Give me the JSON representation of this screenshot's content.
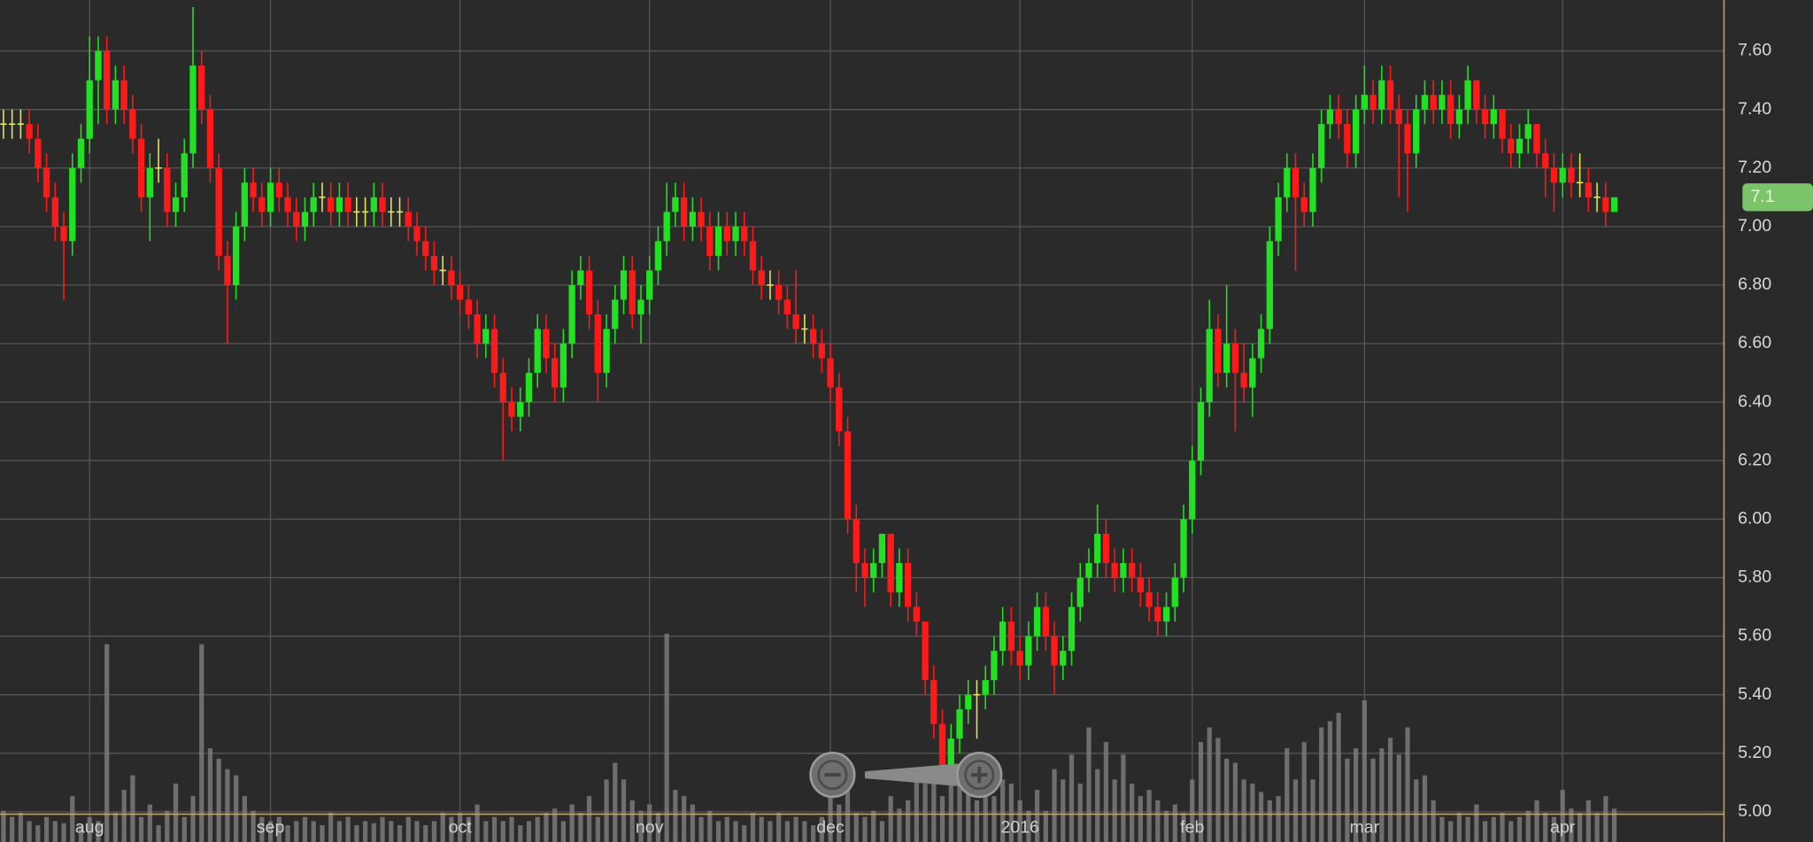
{
  "chart_data": {
    "type": "candlestick",
    "ylim": [
      4.897,
      7.774
    ],
    "yticks": [
      {
        "value": 5,
        "label": "5.00"
      },
      {
        "value": 5.2,
        "label": "5.20"
      },
      {
        "value": 5.4,
        "label": "5.40"
      },
      {
        "value": 5.6,
        "label": "5.60"
      },
      {
        "value": 5.8,
        "label": "5.80"
      },
      {
        "value": 6,
        "label": "6.00"
      },
      {
        "value": 6.2,
        "label": "6.20"
      },
      {
        "value": 6.4,
        "label": "6.40"
      },
      {
        "value": 6.6,
        "label": "6.60"
      },
      {
        "value": 6.8,
        "label": "6.80"
      },
      {
        "value": 7,
        "label": "7.00"
      },
      {
        "value": 7.2,
        "label": "7.20"
      },
      {
        "value": 7.4,
        "label": "7.40"
      },
      {
        "value": 7.6,
        "label": "7.60"
      }
    ],
    "grid": true,
    "colors": {
      "up": "#22e022",
      "down": "#ff1a1a",
      "flat": "#e6e65a",
      "volume": "#7a7a7a",
      "last_price": "#7cc46a"
    },
    "last_price": 7.1,
    "volume_lim": [
      0,
      100
    ],
    "categories": [
      null,
      null,
      null,
      null,
      null,
      null,
      null,
      null,
      null,
      null,
      "aug",
      null,
      null,
      null,
      null,
      null,
      null,
      null,
      null,
      null,
      null,
      null,
      null,
      null,
      null,
      null,
      null,
      null,
      null,
      null,
      null,
      "sep",
      null,
      null,
      null,
      null,
      null,
      null,
      null,
      null,
      null,
      null,
      null,
      null,
      null,
      null,
      null,
      null,
      null,
      null,
      null,
      null,
      null,
      "oct",
      null,
      null,
      null,
      null,
      null,
      null,
      null,
      null,
      null,
      null,
      null,
      null,
      null,
      null,
      null,
      null,
      null,
      null,
      null,
      null,
      null,
      "nov",
      null,
      null,
      null,
      null,
      null,
      null,
      null,
      null,
      null,
      null,
      null,
      null,
      null,
      null,
      null,
      null,
      null,
      null,
      null,
      null,
      "dec",
      null,
      null,
      null,
      null,
      null,
      null,
      null,
      null,
      null,
      null,
      null,
      null,
      null,
      null,
      null,
      null,
      null,
      null,
      null,
      null,
      null,
      "2016",
      null,
      null,
      null,
      null,
      null,
      null,
      null,
      null,
      null,
      null,
      null,
      null,
      null,
      null,
      null,
      null,
      null,
      null,
      null,
      "feb",
      null,
      null,
      null,
      null,
      null,
      null,
      null,
      null,
      null,
      null,
      null,
      null,
      null,
      null,
      null,
      null,
      null,
      null,
      null,
      "mar",
      null,
      null,
      null,
      null,
      null,
      null,
      null,
      null,
      null,
      null,
      null,
      null,
      null,
      null,
      null,
      null,
      null,
      null,
      null,
      null,
      null,
      null,
      "apr",
      null,
      null,
      null,
      null,
      null,
      null
    ],
    "candles": [
      [
        7.35,
        7.4,
        7.3,
        7.35
      ],
      [
        7.35,
        7.4,
        7.3,
        7.35
      ],
      [
        7.35,
        7.4,
        7.3,
        7.35
      ],
      [
        7.35,
        7.4,
        7.25,
        7.3
      ],
      [
        7.3,
        7.35,
        7.15,
        7.2
      ],
      [
        7.2,
        7.25,
        7.05,
        7.1
      ],
      [
        7.1,
        7.15,
        6.95,
        7.0
      ],
      [
        7.0,
        7.05,
        6.75,
        6.95
      ],
      [
        6.95,
        7.25,
        6.9,
        7.2
      ],
      [
        7.2,
        7.35,
        7.15,
        7.3
      ],
      [
        7.3,
        7.65,
        7.25,
        7.5
      ],
      [
        7.5,
        7.65,
        7.35,
        7.6
      ],
      [
        7.6,
        7.65,
        7.35,
        7.4
      ],
      [
        7.4,
        7.55,
        7.35,
        7.5
      ],
      [
        7.5,
        7.55,
        7.35,
        7.4
      ],
      [
        7.4,
        7.45,
        7.25,
        7.3
      ],
      [
        7.3,
        7.35,
        7.05,
        7.1
      ],
      [
        7.1,
        7.25,
        6.95,
        7.2
      ],
      [
        7.2,
        7.3,
        7.15,
        7.2
      ],
      [
        7.2,
        7.25,
        7.0,
        7.05
      ],
      [
        7.05,
        7.15,
        7.0,
        7.1
      ],
      [
        7.1,
        7.3,
        7.05,
        7.25
      ],
      [
        7.25,
        7.75,
        7.2,
        7.55
      ],
      [
        7.55,
        7.6,
        7.35,
        7.4
      ],
      [
        7.4,
        7.45,
        7.15,
        7.2
      ],
      [
        7.2,
        7.25,
        6.85,
        6.9
      ],
      [
        6.9,
        6.95,
        6.6,
        6.8
      ],
      [
        6.8,
        7.05,
        6.75,
        7.0
      ],
      [
        7.0,
        7.2,
        6.95,
        7.15
      ],
      [
        7.15,
        7.2,
        7.05,
        7.1
      ],
      [
        7.1,
        7.15,
        7.0,
        7.05
      ],
      [
        7.05,
        7.2,
        7.0,
        7.15
      ],
      [
        7.15,
        7.2,
        7.05,
        7.1
      ],
      [
        7.1,
        7.15,
        7.0,
        7.05
      ],
      [
        7.05,
        7.1,
        6.95,
        7.0
      ],
      [
        7.0,
        7.1,
        6.95,
        7.05
      ],
      [
        7.05,
        7.15,
        7.0,
        7.1
      ],
      [
        7.1,
        7.15,
        7.05,
        7.1
      ],
      [
        7.1,
        7.15,
        7.0,
        7.05
      ],
      [
        7.05,
        7.15,
        7.0,
        7.1
      ],
      [
        7.1,
        7.15,
        7.0,
        7.05
      ],
      [
        7.05,
        7.1,
        7.0,
        7.05
      ],
      [
        7.05,
        7.1,
        7.0,
        7.05
      ],
      [
        7.05,
        7.15,
        7.0,
        7.1
      ],
      [
        7.1,
        7.15,
        7.0,
        7.05
      ],
      [
        7.05,
        7.1,
        7.0,
        7.05
      ],
      [
        7.05,
        7.1,
        7.0,
        7.05
      ],
      [
        7.05,
        7.1,
        6.95,
        7.0
      ],
      [
        7.0,
        7.05,
        6.9,
        6.95
      ],
      [
        6.95,
        7.0,
        6.85,
        6.9
      ],
      [
        6.9,
        6.95,
        6.8,
        6.85
      ],
      [
        6.85,
        6.9,
        6.8,
        6.85
      ],
      [
        6.85,
        6.9,
        6.75,
        6.8
      ],
      [
        6.8,
        6.85,
        6.7,
        6.75
      ],
      [
        6.75,
        6.8,
        6.65,
        6.7
      ],
      [
        6.7,
        6.75,
        6.55,
        6.6
      ],
      [
        6.6,
        6.7,
        6.55,
        6.65
      ],
      [
        6.65,
        6.7,
        6.45,
        6.5
      ],
      [
        6.5,
        6.55,
        6.2,
        6.4
      ],
      [
        6.4,
        6.45,
        6.3,
        6.35
      ],
      [
        6.35,
        6.45,
        6.3,
        6.4
      ],
      [
        6.4,
        6.55,
        6.35,
        6.5
      ],
      [
        6.5,
        6.7,
        6.45,
        6.65
      ],
      [
        6.65,
        6.7,
        6.5,
        6.55
      ],
      [
        6.55,
        6.6,
        6.4,
        6.45
      ],
      [
        6.45,
        6.65,
        6.4,
        6.6
      ],
      [
        6.6,
        6.85,
        6.55,
        6.8
      ],
      [
        6.8,
        6.9,
        6.75,
        6.85
      ],
      [
        6.85,
        6.9,
        6.65,
        6.7
      ],
      [
        6.7,
        6.75,
        6.4,
        6.5
      ],
      [
        6.5,
        6.7,
        6.45,
        6.65
      ],
      [
        6.65,
        6.8,
        6.6,
        6.75
      ],
      [
        6.75,
        6.9,
        6.7,
        6.85
      ],
      [
        6.85,
        6.9,
        6.65,
        6.7
      ],
      [
        6.7,
        6.8,
        6.6,
        6.75
      ],
      [
        6.75,
        6.9,
        6.7,
        6.85
      ],
      [
        6.85,
        7.0,
        6.8,
        6.95
      ],
      [
        6.95,
        7.15,
        6.9,
        7.05
      ],
      [
        7.05,
        7.15,
        7.0,
        7.1
      ],
      [
        7.1,
        7.15,
        6.95,
        7.0
      ],
      [
        7.0,
        7.1,
        6.95,
        7.05
      ],
      [
        7.05,
        7.1,
        6.95,
        7.0
      ],
      [
        7.0,
        7.05,
        6.85,
        6.9
      ],
      [
        6.9,
        7.05,
        6.85,
        7.0
      ],
      [
        7.0,
        7.05,
        6.9,
        6.95
      ],
      [
        6.95,
        7.05,
        6.9,
        7.0
      ],
      [
        7.0,
        7.05,
        6.9,
        6.95
      ],
      [
        6.95,
        7.0,
        6.8,
        6.85
      ],
      [
        6.85,
        6.9,
        6.75,
        6.8
      ],
      [
        6.8,
        6.85,
        6.75,
        6.8
      ],
      [
        6.8,
        6.85,
        6.7,
        6.75
      ],
      [
        6.75,
        6.8,
        6.65,
        6.7
      ],
      [
        6.7,
        6.85,
        6.6,
        6.65
      ],
      [
        6.65,
        6.7,
        6.6,
        6.65
      ],
      [
        6.65,
        6.7,
        6.55,
        6.6
      ],
      [
        6.6,
        6.65,
        6.5,
        6.55
      ],
      [
        6.55,
        6.6,
        6.4,
        6.45
      ],
      [
        6.45,
        6.5,
        6.25,
        6.3
      ],
      [
        6.3,
        6.35,
        5.95,
        6.0
      ],
      [
        6.0,
        6.05,
        5.75,
        5.85
      ],
      [
        5.85,
        5.9,
        5.7,
        5.8
      ],
      [
        5.8,
        5.9,
        5.75,
        5.85
      ],
      [
        5.85,
        5.95,
        5.8,
        5.95
      ],
      [
        5.95,
        5.95,
        5.7,
        5.75
      ],
      [
        5.75,
        5.9,
        5.7,
        5.85
      ],
      [
        5.85,
        5.9,
        5.65,
        5.7
      ],
      [
        5.7,
        5.75,
        5.6,
        5.65
      ],
      [
        5.65,
        5.65,
        5.4,
        5.45
      ],
      [
        5.45,
        5.5,
        5.25,
        5.3
      ],
      [
        5.3,
        5.35,
        5.1,
        5.15
      ],
      [
        5.15,
        5.3,
        5.1,
        5.25
      ],
      [
        5.25,
        5.4,
        5.2,
        5.35
      ],
      [
        5.35,
        5.45,
        5.3,
        5.4
      ],
      [
        5.4,
        5.45,
        5.25,
        5.4
      ],
      [
        5.4,
        5.5,
        5.35,
        5.45
      ],
      [
        5.45,
        5.6,
        5.4,
        5.55
      ],
      [
        5.55,
        5.7,
        5.5,
        5.65
      ],
      [
        5.65,
        5.7,
        5.5,
        5.55
      ],
      [
        5.55,
        5.6,
        5.45,
        5.5
      ],
      [
        5.5,
        5.65,
        5.45,
        5.6
      ],
      [
        5.6,
        5.75,
        5.55,
        5.7
      ],
      [
        5.7,
        5.75,
        5.55,
        5.6
      ],
      [
        5.6,
        5.65,
        5.4,
        5.5
      ],
      [
        5.5,
        5.6,
        5.45,
        5.55
      ],
      [
        5.55,
        5.75,
        5.5,
        5.7
      ],
      [
        5.7,
        5.85,
        5.65,
        5.8
      ],
      [
        5.8,
        5.9,
        5.75,
        5.85
      ],
      [
        5.85,
        6.05,
        5.8,
        5.95
      ],
      [
        5.95,
        6.0,
        5.8,
        5.85
      ],
      [
        5.85,
        5.9,
        5.75,
        5.8
      ],
      [
        5.8,
        5.9,
        5.75,
        5.85
      ],
      [
        5.85,
        5.9,
        5.75,
        5.8
      ],
      [
        5.8,
        5.85,
        5.7,
        5.75
      ],
      [
        5.75,
        5.8,
        5.65,
        5.7
      ],
      [
        5.7,
        5.75,
        5.6,
        5.65
      ],
      [
        5.65,
        5.75,
        5.6,
        5.7
      ],
      [
        5.7,
        5.85,
        5.65,
        5.8
      ],
      [
        5.8,
        6.05,
        5.75,
        6.0
      ],
      [
        6.0,
        6.25,
        5.95,
        6.2
      ],
      [
        6.2,
        6.45,
        6.15,
        6.4
      ],
      [
        6.4,
        6.75,
        6.35,
        6.65
      ],
      [
        6.65,
        6.7,
        6.45,
        6.5
      ],
      [
        6.5,
        6.8,
        6.45,
        6.6
      ],
      [
        6.6,
        6.65,
        6.3,
        6.5
      ],
      [
        6.5,
        6.6,
        6.4,
        6.45
      ],
      [
        6.45,
        6.6,
        6.35,
        6.55
      ],
      [
        6.55,
        6.7,
        6.5,
        6.65
      ],
      [
        6.65,
        7.0,
        6.6,
        6.95
      ],
      [
        6.95,
        7.15,
        6.9,
        7.1
      ],
      [
        7.1,
        7.25,
        7.05,
        7.2
      ],
      [
        7.2,
        7.25,
        6.85,
        7.1
      ],
      [
        7.1,
        7.15,
        7.0,
        7.05
      ],
      [
        7.05,
        7.25,
        7.0,
        7.2
      ],
      [
        7.2,
        7.4,
        7.15,
        7.35
      ],
      [
        7.35,
        7.45,
        7.3,
        7.4
      ],
      [
        7.4,
        7.45,
        7.3,
        7.35
      ],
      [
        7.35,
        7.4,
        7.2,
        7.25
      ],
      [
        7.25,
        7.45,
        7.2,
        7.4
      ],
      [
        7.4,
        7.55,
        7.35,
        7.45
      ],
      [
        7.45,
        7.5,
        7.35,
        7.4
      ],
      [
        7.4,
        7.55,
        7.35,
        7.5
      ],
      [
        7.5,
        7.55,
        7.35,
        7.4
      ],
      [
        7.4,
        7.45,
        7.1,
        7.35
      ],
      [
        7.35,
        7.4,
        7.05,
        7.25
      ],
      [
        7.25,
        7.45,
        7.2,
        7.4
      ],
      [
        7.4,
        7.5,
        7.35,
        7.45
      ],
      [
        7.45,
        7.5,
        7.35,
        7.4
      ],
      [
        7.4,
        7.5,
        7.35,
        7.45
      ],
      [
        7.45,
        7.5,
        7.3,
        7.35
      ],
      [
        7.35,
        7.45,
        7.3,
        7.4
      ],
      [
        7.4,
        7.55,
        7.35,
        7.5
      ],
      [
        7.5,
        7.5,
        7.35,
        7.4
      ],
      [
        7.4,
        7.45,
        7.3,
        7.35
      ],
      [
        7.35,
        7.45,
        7.3,
        7.4
      ],
      [
        7.4,
        7.4,
        7.25,
        7.3
      ],
      [
        7.3,
        7.35,
        7.2,
        7.25
      ],
      [
        7.25,
        7.35,
        7.2,
        7.3
      ],
      [
        7.3,
        7.4,
        7.25,
        7.35
      ],
      [
        7.35,
        7.35,
        7.2,
        7.25
      ],
      [
        7.25,
        7.3,
        7.1,
        7.2
      ],
      [
        7.2,
        7.25,
        7.05,
        7.15
      ],
      [
        7.15,
        7.25,
        7.1,
        7.2
      ],
      [
        7.2,
        7.25,
        7.1,
        7.15
      ],
      [
        7.15,
        7.25,
        7.1,
        7.15
      ],
      [
        7.15,
        7.2,
        7.05,
        7.1
      ],
      [
        7.1,
        7.15,
        7.05,
        7.1
      ],
      [
        7.1,
        7.15,
        7.0,
        7.05
      ],
      [
        7.05,
        7.1,
        7.05,
        7.1
      ]
    ],
    "volume": [
      15,
      12,
      14,
      10,
      8,
      12,
      10,
      9,
      22,
      8,
      12,
      10,
      95,
      14,
      25,
      32,
      12,
      18,
      8,
      15,
      28,
      12,
      22,
      95,
      45,
      40,
      35,
      32,
      22,
      15,
      12,
      10,
      12,
      8,
      10,
      12,
      10,
      8,
      14,
      10,
      12,
      8,
      10,
      9,
      12,
      10,
      8,
      12,
      10,
      8,
      10,
      14,
      12,
      14,
      12,
      18,
      10,
      12,
      10,
      12,
      8,
      10,
      12,
      14,
      16,
      10,
      18,
      14,
      22,
      12,
      30,
      38,
      30,
      20,
      15,
      18,
      14,
      100,
      25,
      22,
      18,
      12,
      15,
      10,
      12,
      10,
      8,
      14,
      12,
      10,
      14,
      10,
      12,
      10,
      8,
      12,
      22,
      18,
      25,
      14,
      12,
      15,
      10,
      22,
      16,
      20,
      30,
      28,
      35,
      22,
      38,
      32,
      30,
      20,
      25,
      22,
      30,
      28,
      20,
      15,
      25,
      15,
      35,
      30,
      42,
      28,
      55,
      35,
      48,
      30,
      42,
      28,
      22,
      25,
      20,
      15,
      18,
      14,
      30,
      48,
      55,
      50,
      40,
      38,
      30,
      28,
      24,
      20,
      22,
      45,
      30,
      48,
      30,
      55,
      58,
      62,
      40,
      45,
      68,
      40,
      45,
      50,
      42,
      55,
      30,
      32,
      20,
      12,
      10,
      14,
      12,
      18,
      10,
      12,
      14,
      10,
      12,
      15,
      20,
      14,
      12,
      25,
      16,
      14,
      20,
      14,
      22,
      16
    ]
  }
}
